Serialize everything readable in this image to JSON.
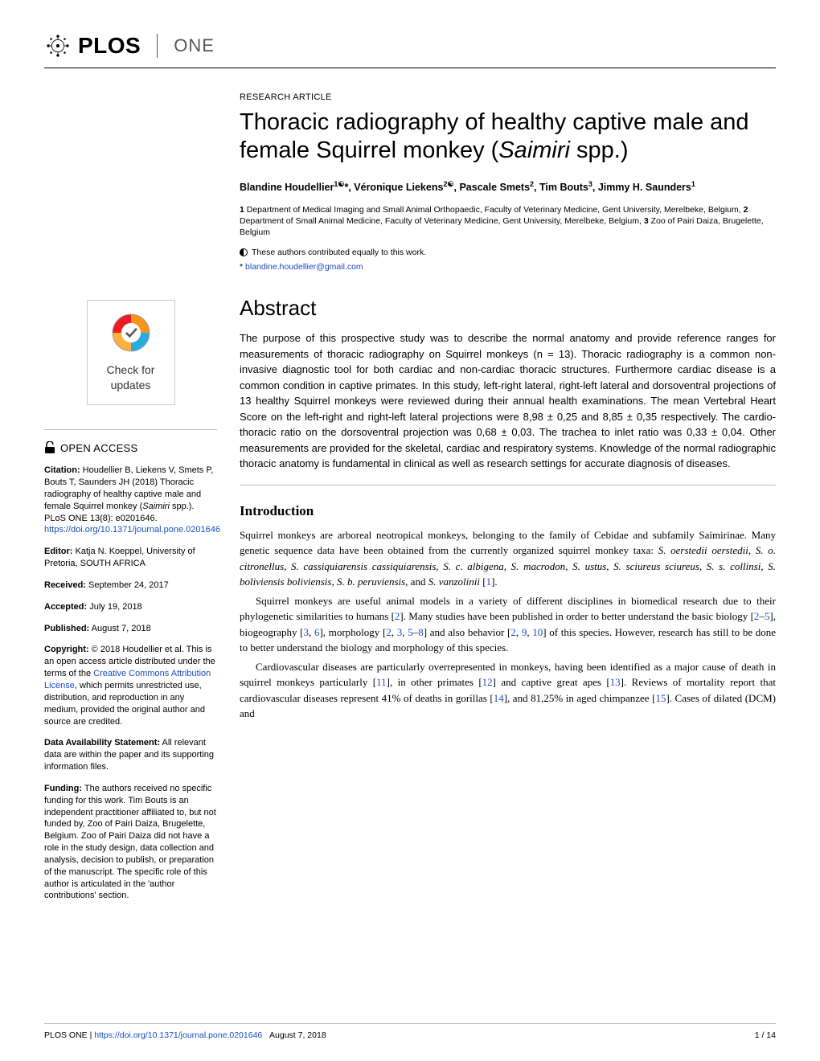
{
  "journal": {
    "brand": "PLOS",
    "sub": "ONE"
  },
  "article": {
    "type": "RESEARCH ARTICLE",
    "title_a": "Thoracic radiography of healthy captive male and female Squirrel monkey (",
    "title_italic": "Saimiri",
    "title_b": " spp.)",
    "authors_html": "Blandine Houdellier<sup>1☯</sup>*, Véronique Liekens<sup>2☯</sup>, Pascale Smets<sup>2</sup>, Tim Bouts<sup>3</sup>, Jimmy H. Saunders<sup>1</sup>",
    "affiliations": "<b>1</b> Department of Medical Imaging and Small Animal Orthopaedic, Faculty of Veterinary Medicine, Gent University, Merelbeke, Belgium, <b>2</b> Department of Small Animal Medicine, Faculty of Veterinary Medicine, Gent University, Merelbeke, Belgium, <b>3</b> Zoo of Pairi Daiza, Brugelette, Belgium",
    "contrib_note": "These authors contributed equally to this work.",
    "corr_prefix": "* ",
    "corr_email": "blandine.houdellier@gmail.com"
  },
  "abstract": {
    "heading": "Abstract",
    "text": "The purpose of this prospective study was to describe the normal anatomy and provide reference ranges for measurements of thoracic radiography on Squirrel monkeys (n = 13). Thoracic radiography is a common non-invasive diagnostic tool for both cardiac and non-cardiac thoracic structures. Furthermore cardiac disease is a common condition in captive primates. In this study, left-right lateral, right-left lateral and dorsoventral projections of 13 healthy Squirrel monkeys were reviewed during their annual health examinations. The mean Vertebral Heart Score on the left-right and right-left lateral projections were 8,98 ± 0,25 and 8,85 ± 0,35 respectively. The cardio-thoracic ratio on the dorsoventral projection was 0,68 ± 0,03. The trachea to inlet ratio was 0,33 ± 0,04. Other measurements are provided for the skeletal, cardiac and respiratory systems. Knowledge of the normal radiographic thoracic anatomy is fundamental in clinical as well as research settings for accurate diagnosis of diseases."
  },
  "intro": {
    "heading": "Introduction",
    "p1_a": "Squirrel monkeys are arboreal neotropical monkeys, belonging to the family of Cebidae and subfamily Saimirinae. Many genetic sequence data have been obtained from the currently organized squirrel monkey taxa: ",
    "p1_italic": "S. oerstedii oerstedii, S. o. citronellus, S. cassiquiarensis cassiquiarensis, S. c. albigena, S. macrodon, S. ustus, S. sciureus sciureus, S. s. collinsi, S. boliviensis boliviensis, S. b. peruviensis,",
    "p1_b": " and ",
    "p1_italic2": "S. vanzolinii",
    "p1_c": " [",
    "p1_ref": "1",
    "p1_d": "].",
    "p2": "Squirrel monkeys are useful animal models in a variety of different disciplines in biomedical research due to their phylogenetic similarities to humans [<span class='ref-link'>2</span>]. Many studies have been published in order to better understand the basic biology [<span class='ref-link'>2</span>–<span class='ref-link'>5</span>], biogeography [<span class='ref-link'>3</span>, <span class='ref-link'>6</span>], morphology [<span class='ref-link'>2</span>, <span class='ref-link'>3</span>, <span class='ref-link'>5</span>–<span class='ref-link'>8</span>] and also behavior [<span class='ref-link'>2</span>, <span class='ref-link'>9</span>, <span class='ref-link'>10</span>] of this species. However, research has still to be done to better understand the biology and morphology of this species.",
    "p3": "Cardiovascular diseases are particularly overrepresented in monkeys, having been identified as a major cause of death in squirrel monkeys particularly [<span class='ref-link'>11</span>], in other primates [<span class='ref-link'>12</span>] and captive great apes [<span class='ref-link'>13</span>]. Reviews of mortality report that cardiovascular diseases represent 41% of deaths in gorillas [<span class='ref-link'>14</span>], and 81,25% in aged chimpanzee [<span class='ref-link'>15</span>]. Cases of dilated (DCM) and"
  },
  "sidebar": {
    "check1": "Check for",
    "check2": "updates",
    "open_access": "OPEN ACCESS",
    "citation_label": "Citation:",
    "citation_text": " Houdellier B, Liekens V, Smets P, Bouts T, Saunders JH (2018) Thoracic radiography of healthy captive male and female Squirrel monkey (<i>Saimiri</i> spp.). PLoS ONE 13(8): e0201646. ",
    "citation_link": "https://doi.org/10.1371/journal.pone.0201646",
    "editor_label": "Editor:",
    "editor_text": " Katja N. Koeppel, University of Pretoria, SOUTH AFRICA",
    "received_label": "Received:",
    "received_text": " September 24, 2017",
    "accepted_label": "Accepted:",
    "accepted_text": " July 19, 2018",
    "published_label": "Published:",
    "published_text": " August 7, 2018",
    "copyright_label": "Copyright:",
    "copyright_text": " © 2018 Houdellier et al. This is an open access article distributed under the terms of the ",
    "cc_link": "Creative Commons Attribution License",
    "copyright_text2": ", which permits unrestricted use, distribution, and reproduction in any medium, provided the original author and source are credited.",
    "data_label": "Data Availability Statement:",
    "data_text": " All relevant data are within the paper and its supporting information files.",
    "funding_label": "Funding:",
    "funding_text": " The authors received no specific funding for this work. Tim Bouts is an independent practitioner affiliated to, but not funded by, Zoo of Pairi Daiza, Brugelette, Belgium. Zoo of Pairi Daiza did not have a role in the study design, data collection and analysis, decision to publish, or preparation of the manuscript. The specific role of this author is articulated in the 'author contributions' section."
  },
  "footer": {
    "journal": "PLOS ONE | ",
    "doi": "https://doi.org/10.1371/journal.pone.0201646",
    "date": "August 7, 2018",
    "page": "1 / 14"
  },
  "colors": {
    "link": "#1a4ec2",
    "badge_orange": "#f7941d",
    "badge_blue": "#29abe2"
  }
}
